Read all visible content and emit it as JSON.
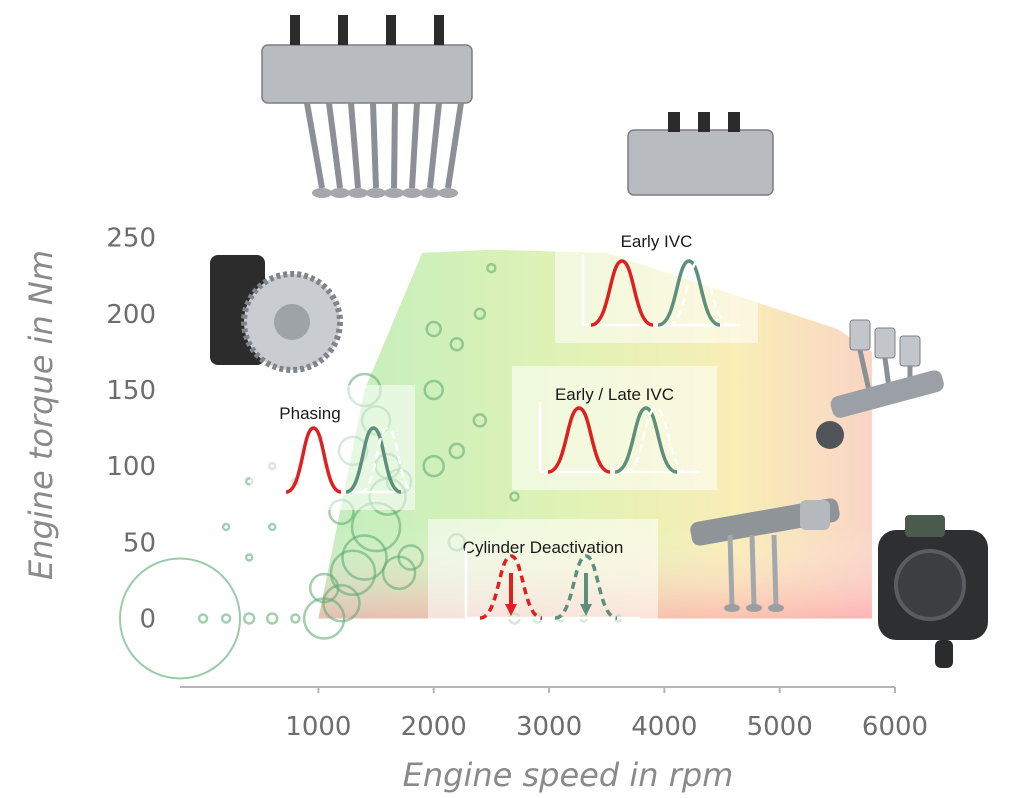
{
  "chart_data": {
    "type": "scatter",
    "title": "",
    "xlabel": "Engine speed in rpm",
    "ylabel": "Engine torque in Nm",
    "xlim": [
      -200,
      6000
    ],
    "ylim": [
      -45,
      255
    ],
    "x_ticks": [
      "1000",
      "2000",
      "3000",
      "4000",
      "5000",
      "6000"
    ],
    "y_ticks": [
      "0",
      "50",
      "100",
      "150",
      "200",
      "250"
    ],
    "x_tick_values": [
      1000,
      2000,
      3000,
      4000,
      5000,
      6000
    ],
    "y_tick_values": [
      0,
      50,
      100,
      150,
      200,
      250
    ],
    "full_load_curve": {
      "rpm": [
        1000,
        1400,
        1900,
        2500,
        3500,
        4500,
        5500,
        5800
      ],
      "torque": [
        0,
        150,
        240,
        242,
        240,
        215,
        190,
        175
      ]
    },
    "operating_points": {
      "rpm": [
        -200,
        0,
        200,
        400,
        600,
        800,
        1050,
        1050,
        1200,
        1200,
        1300,
        1300,
        1400,
        1400,
        1500,
        1500,
        1600,
        1600,
        1700,
        1700,
        1800,
        2000,
        2000,
        2000,
        2200,
        2200,
        2200,
        2400,
        2400,
        2500,
        2700,
        2700,
        2900,
        3100,
        3300,
        3600,
        400,
        400,
        600,
        600,
        800,
        200
      ],
      "torque": [
        0,
        0,
        0,
        0,
        0,
        0,
        0,
        20,
        10,
        70,
        30,
        110,
        40,
        150,
        60,
        130,
        80,
        100,
        30,
        90,
        40,
        100,
        150,
        190,
        50,
        110,
        180,
        130,
        200,
        230,
        0,
        80,
        0,
        0,
        0,
        0,
        40,
        90,
        60,
        100,
        90,
        60
      ],
      "size": [
        60,
        4,
        4,
        5,
        5,
        4,
        20,
        14,
        18,
        12,
        22,
        14,
        22,
        16,
        24,
        14,
        18,
        12,
        16,
        12,
        12,
        10,
        9,
        7,
        8,
        7,
        6,
        6,
        5,
        4,
        5,
        4,
        4,
        3,
        3,
        3,
        3,
        3,
        3,
        3,
        3,
        3
      ]
    },
    "annotations": [
      {
        "label": "Early IVC",
        "rpm": 3550,
        "torque": 200
      },
      {
        "label": "Phasing",
        "rpm": 1000,
        "torque": 105
      },
      {
        "label": "Early / Late IVC",
        "rpm": 3300,
        "torque": 110
      },
      {
        "label": "Cylinder Deactivation",
        "rpm": 2650,
        "torque": 12
      }
    ],
    "component_images": [
      "valve-train-module",
      "hydraulic-valve-block",
      "cam-phaser",
      "crank-and-pistons",
      "rocker-arm-assembly",
      "throttle-actuator"
    ]
  },
  "colors": {
    "scatter": "#5aa86d",
    "valve_lift_primary": "#e02020",
    "valve_lift_secondary": "#5e8f7c"
  }
}
